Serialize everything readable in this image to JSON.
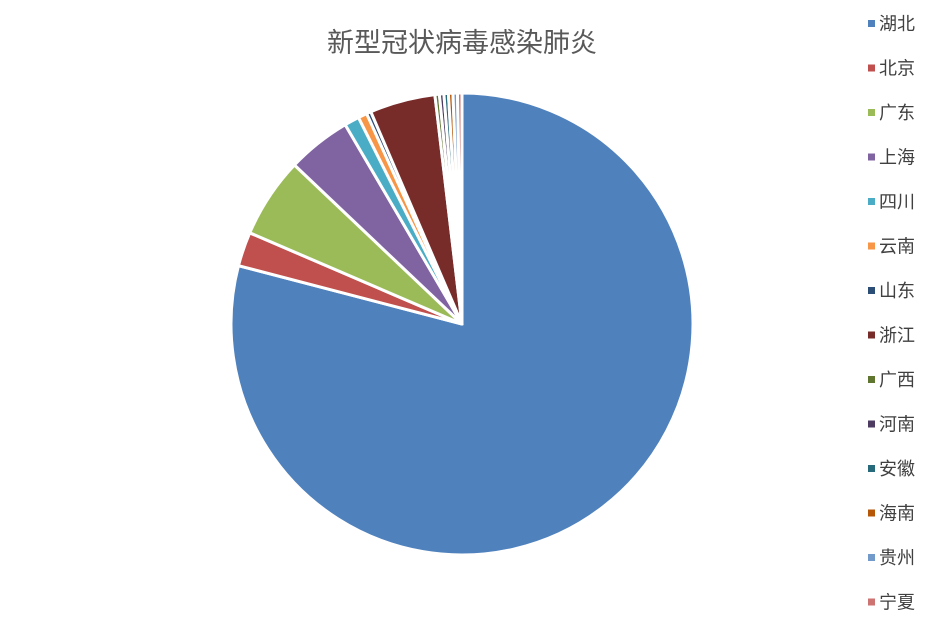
{
  "chart_data": {
    "type": "pie",
    "title": "新型冠状病毒感染肺炎",
    "categories": [
      "湖北",
      "北京",
      "广东",
      "上海",
      "四川",
      "云南",
      "山东",
      "浙江",
      "广西",
      "河南",
      "安徽",
      "海南",
      "贵州",
      "宁夏"
    ],
    "values": [
      75.9,
      2.3,
      5.4,
      4.3,
      1.0,
      0.6,
      0.3,
      4.4,
      0.3,
      0.3,
      0.3,
      0.3,
      0.3,
      0.3
    ],
    "colors": [
      "#4F81BD",
      "#C0504D",
      "#9BBB59",
      "#8064A2",
      "#4BACC6",
      "#F79646",
      "#2C4D75",
      "#772C2A",
      "#5F7530",
      "#4D3B62",
      "#276A7C",
      "#B65708",
      "#729ACA",
      "#CD7371"
    ],
    "legend_position": "right",
    "start_angle": "12 o'clock, clockwise"
  }
}
